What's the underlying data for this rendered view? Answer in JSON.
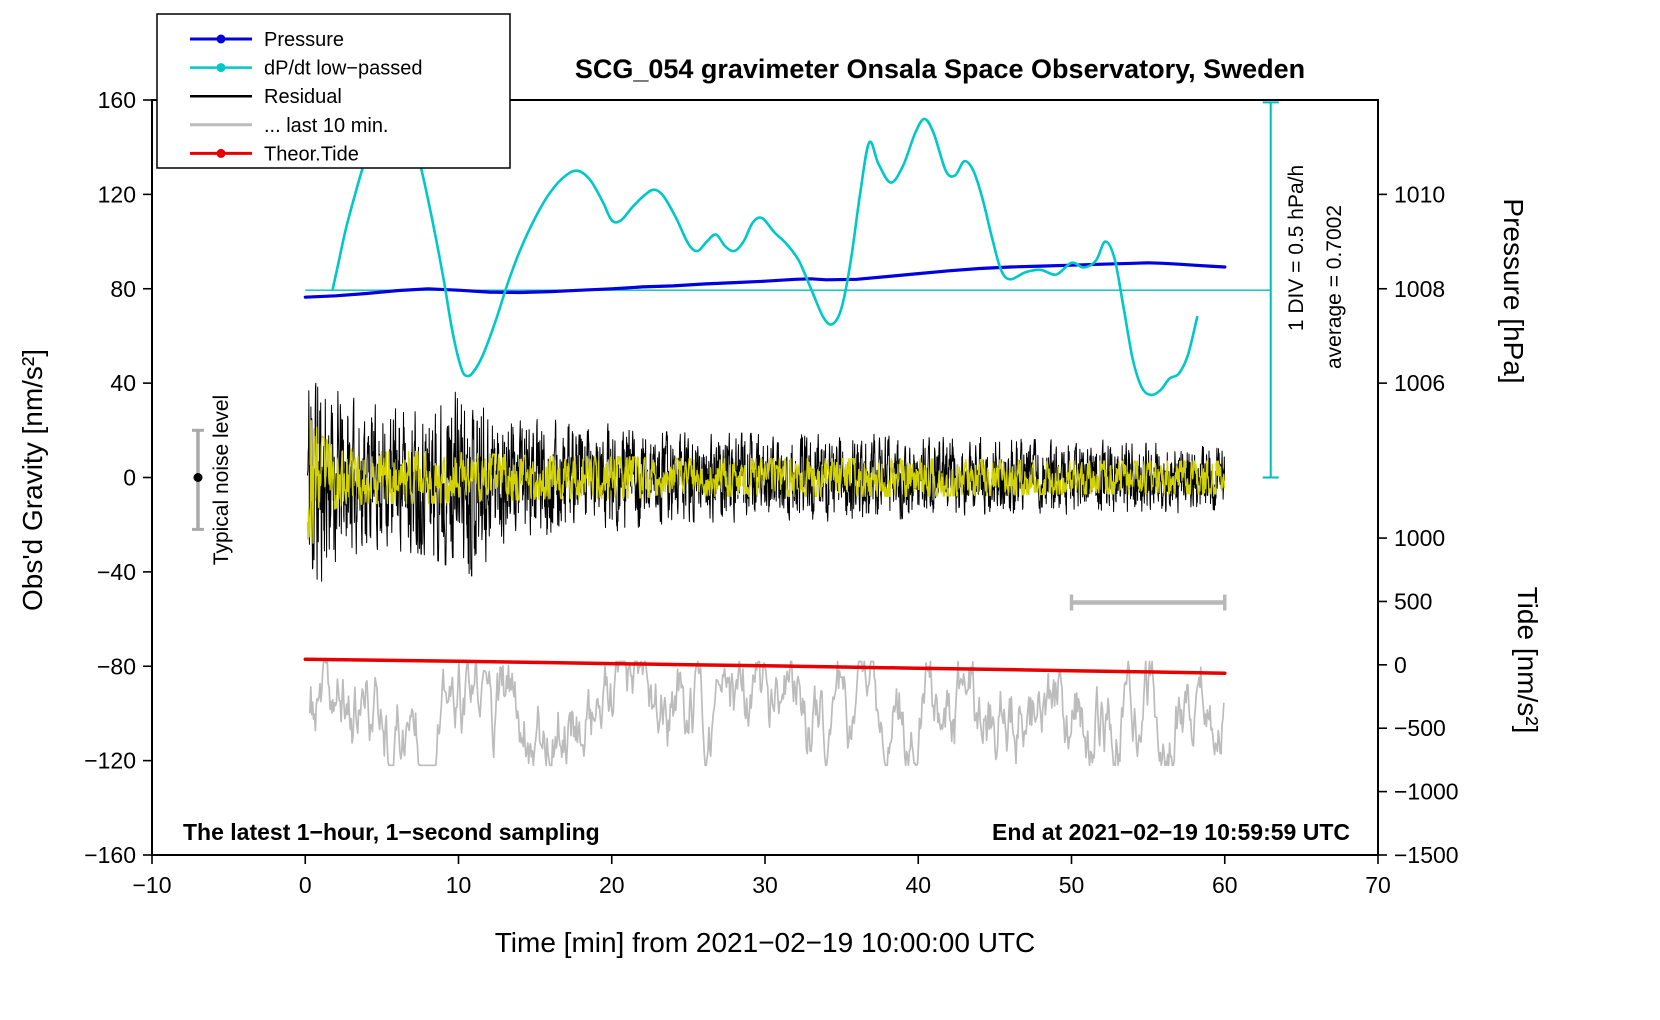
{
  "chart_data": {
    "type": "line",
    "title": "SCG_054 gravimeter Onsala Space Observatory, Sweden",
    "xlabel": "Time [min] from 2021−02−19 10:00:00 UTC",
    "ylabel_left": "Obs'd Gravity [nm/s²]",
    "ylabel_right_top": "Pressure [hPa]",
    "ylabel_right_bottom": "Tide [nm/s²]",
    "footnote_left": "The latest 1−hour, 1−second sampling",
    "footnote_right": "End at 2021−02−19 10:59:59 UTC",
    "x_axis": {
      "min": -10,
      "max": 70,
      "ticks": [
        -10,
        0,
        10,
        20,
        30,
        40,
        50,
        60,
        70
      ],
      "tick_labels": [
        "−10",
        "0",
        "10",
        "20",
        "30",
        "40",
        "50",
        "60",
        "70"
      ]
    },
    "gravity_axis": {
      "min": -160,
      "max": 160,
      "ticks": [
        160,
        120,
        80,
        40,
        0,
        -40,
        -80,
        -120,
        -160
      ],
      "tick_labels": [
        "160",
        "120",
        "80",
        "40",
        "0",
        "−40",
        "−80",
        "−120",
        "−160"
      ]
    },
    "pressure_axis": {
      "ticks": [
        1010,
        1008,
        1006
      ],
      "tick_labels": [
        "1010",
        "1008",
        "1006"
      ],
      "ref_hPa": 1008,
      "ref_gravity": 80,
      "gravity_per_hPa": 20
    },
    "tide_axis": {
      "ticks": [
        1000,
        500,
        0,
        -500,
        -1000,
        -1500
      ],
      "tick_labels": [
        "1000",
        "500",
        "0",
        "−500",
        "−1000",
        "−1500"
      ],
      "ref_tide": 0,
      "ref_gravity": -79.4,
      "gravity_per_unit": 0.053733
    },
    "legend": {
      "items": [
        {
          "label": "Pressure",
          "color": "#0000e0",
          "dot": true,
          "width": 3
        },
        {
          "label": "dP/dt low−passed",
          "color": "#00c8c8",
          "dot": true,
          "width": 2.5
        },
        {
          "label": "Residual",
          "color": "#000000",
          "dot": false,
          "width": 2.5
        },
        {
          "label": "... last 10 min.",
          "color": "#bcbcbc",
          "dot": false,
          "width": 3
        },
        {
          "label": "Theor.Tide",
          "color": "#e80000",
          "dot": true,
          "width": 3
        }
      ]
    },
    "average_line": {
      "gravity": 79.4,
      "x_start": 0,
      "x_end": 63,
      "color": "#00bdbd"
    },
    "div_scale_bar": {
      "x": 63,
      "gravity_min": 0,
      "gravity_max": 159,
      "color": "#00bdbd",
      "label_div": "1 DIV = 0.5 hPa/h",
      "label_avg": "average = 0.7002"
    },
    "noise_level_marker": {
      "x": -7,
      "gravity_min": -22,
      "gravity_max": 20,
      "dot_gravity": 0,
      "color": "#a9a9a9",
      "label": "Typical noise level"
    },
    "gray_scale_bar": {
      "x_start": 50,
      "x_end": 60,
      "gravity": -53,
      "color": "#b8b8b8"
    },
    "series": {
      "pressure": {
        "name": "Pressure",
        "color": "#0000e0",
        "width": 3.2,
        "axis": "pressure",
        "points": [
          [
            0,
            1007.82
          ],
          [
            2,
            1007.85
          ],
          [
            4,
            1007.9
          ],
          [
            6,
            1007.96
          ],
          [
            8,
            1008.0
          ],
          [
            10,
            1007.97
          ],
          [
            12,
            1007.93
          ],
          [
            14,
            1007.92
          ],
          [
            16,
            1007.94
          ],
          [
            18,
            1007.97
          ],
          [
            20,
            1008.0
          ],
          [
            22,
            1008.04
          ],
          [
            24,
            1008.06
          ],
          [
            26,
            1008.1
          ],
          [
            28,
            1008.13
          ],
          [
            30,
            1008.16
          ],
          [
            32,
            1008.2
          ],
          [
            33,
            1008.21
          ],
          [
            34,
            1008.19
          ],
          [
            36,
            1008.2
          ],
          [
            38,
            1008.26
          ],
          [
            40,
            1008.32
          ],
          [
            42,
            1008.38
          ],
          [
            44,
            1008.43
          ],
          [
            46,
            1008.46
          ],
          [
            48,
            1008.48
          ],
          [
            50,
            1008.5
          ],
          [
            52,
            1008.52
          ],
          [
            54,
            1008.54
          ],
          [
            55,
            1008.55
          ],
          [
            56,
            1008.54
          ],
          [
            57,
            1008.52
          ],
          [
            58,
            1008.5
          ],
          [
            59,
            1008.48
          ],
          [
            60,
            1008.46
          ]
        ]
      },
      "dpdt": {
        "name": "dP/dt low−passed",
        "color": "#00c8c8",
        "width": 2.6,
        "axis": "gravity",
        "smooth": true,
        "points": [
          [
            1.8,
            80
          ],
          [
            2.2,
            92
          ],
          [
            2.6,
            104
          ],
          [
            3,
            114
          ],
          [
            3.6,
            128
          ],
          [
            4.2,
            140
          ],
          [
            5,
            150
          ],
          [
            6,
            152
          ],
          [
            6.6,
            148
          ],
          [
            7.4,
            135
          ],
          [
            8.2,
            112
          ],
          [
            9,
            85
          ],
          [
            9.6,
            62
          ],
          [
            10.2,
            46
          ],
          [
            10.6,
            43
          ],
          [
            11,
            45
          ],
          [
            11.6,
            52
          ],
          [
            12.4,
            66
          ],
          [
            13.2,
            82
          ],
          [
            14,
            96
          ],
          [
            15,
            110
          ],
          [
            16,
            121
          ],
          [
            17,
            128
          ],
          [
            17.8,
            130
          ],
          [
            18.6,
            126
          ],
          [
            19.4,
            117
          ],
          [
            20,
            109
          ],
          [
            20.6,
            109
          ],
          [
            21.4,
            115
          ],
          [
            22.2,
            120
          ],
          [
            22.8,
            122
          ],
          [
            23.4,
            119
          ],
          [
            24.2,
            110
          ],
          [
            25,
            99
          ],
          [
            25.6,
            96
          ],
          [
            26.2,
            100
          ],
          [
            26.8,
            103
          ],
          [
            27.4,
            98
          ],
          [
            28,
            96
          ],
          [
            28.6,
            100
          ],
          [
            29.2,
            108
          ],
          [
            29.8,
            110
          ],
          [
            30.6,
            104
          ],
          [
            31.4,
            99
          ],
          [
            32.2,
            92
          ],
          [
            33,
            80
          ],
          [
            33.8,
            68
          ],
          [
            34.4,
            65
          ],
          [
            35,
            72
          ],
          [
            35.6,
            92
          ],
          [
            36.2,
            120
          ],
          [
            36.8,
            142
          ],
          [
            37.4,
            133
          ],
          [
            38.2,
            125
          ],
          [
            39,
            132
          ],
          [
            39.8,
            146
          ],
          [
            40.4,
            152
          ],
          [
            41,
            146
          ],
          [
            41.8,
            130
          ],
          [
            42.4,
            128
          ],
          [
            43,
            134
          ],
          [
            43.6,
            130
          ],
          [
            44.2,
            118
          ],
          [
            44.8,
            102
          ],
          [
            45.4,
            88
          ],
          [
            46,
            84
          ],
          [
            47,
            87
          ],
          [
            48,
            88
          ],
          [
            49,
            86
          ],
          [
            50,
            91
          ],
          [
            50.8,
            89
          ],
          [
            51.6,
            92
          ],
          [
            52.2,
            100
          ],
          [
            52.8,
            93
          ],
          [
            53.4,
            72
          ],
          [
            54,
            50
          ],
          [
            54.6,
            38
          ],
          [
            55.2,
            35
          ],
          [
            55.8,
            37
          ],
          [
            56.4,
            42
          ],
          [
            57,
            44
          ],
          [
            57.6,
            52
          ],
          [
            58.2,
            68
          ]
        ]
      },
      "tide": {
        "name": "Theor.Tide",
        "color": "#e80000",
        "width": 3.5,
        "axis": "tide",
        "points": [
          [
            0,
            44
          ],
          [
            5,
            36
          ],
          [
            10,
            28
          ],
          [
            15,
            19
          ],
          [
            20,
            10
          ],
          [
            25,
            1
          ],
          [
            30,
            -8
          ],
          [
            35,
            -17
          ],
          [
            40,
            -27
          ],
          [
            45,
            -36
          ],
          [
            50,
            -46
          ],
          [
            55,
            -56
          ],
          [
            60,
            -66
          ]
        ]
      },
      "residual": {
        "name": "Residual",
        "color": "#000000",
        "width": 1,
        "axis": "gravity",
        "noise": {
          "seed": 11,
          "dt": 0.02,
          "x_start": 0.15,
          "x_end": 60,
          "ar": 0.45,
          "scale": 0.75,
          "center": 0,
          "envelope": [
            [
              0.15,
              58
            ],
            [
              0.5,
              62
            ],
            [
              1,
              48
            ],
            [
              2,
              38
            ],
            [
              3,
              34
            ],
            [
              5,
              30
            ],
            [
              8,
              33
            ],
            [
              10,
              40
            ],
            [
              11,
              42
            ],
            [
              12.5,
              30
            ],
            [
              14,
              24
            ],
            [
              16,
              25
            ],
            [
              18,
              21
            ],
            [
              20,
              23
            ],
            [
              24,
              19
            ],
            [
              28,
              19
            ],
            [
              32,
              18
            ],
            [
              36,
              19
            ],
            [
              40,
              17
            ],
            [
              44,
              17
            ],
            [
              48,
              16
            ],
            [
              52,
              16
            ],
            [
              56,
              15
            ],
            [
              60,
              15
            ]
          ]
        }
      },
      "residual_lowpassed_overlay": {
        "name": "Residual low-passed overlay",
        "color": "#d2d200",
        "width": 1.3,
        "axis": "gravity",
        "noise": {
          "seed": 23,
          "dt": 0.03,
          "x_start": 0.15,
          "x_end": 60,
          "ar": 0.6,
          "scale": 0.9,
          "center": 0,
          "envelope": [
            [
              0.15,
              26
            ],
            [
              0.5,
              28
            ],
            [
              1,
              18
            ],
            [
              2,
              13
            ],
            [
              4,
              11
            ],
            [
              8,
              11
            ],
            [
              12,
              10
            ],
            [
              16,
              9
            ],
            [
              20,
              9
            ],
            [
              25,
              8
            ],
            [
              30,
              8
            ],
            [
              40,
              8
            ],
            [
              50,
              7
            ],
            [
              60,
              7
            ]
          ]
        }
      },
      "last10": {
        "name": "... last 10 min.",
        "color": "#bcbcbc",
        "width": 1.7,
        "axis": "gravity",
        "noise": {
          "seed": 37,
          "dt": 0.06,
          "x_start": 0.3,
          "x_end": 60,
          "ar": 0.88,
          "scale": 0.5,
          "center": -100,
          "envelope": [
            [
              0.3,
              22
            ],
            [
              60,
              22
            ]
          ]
        }
      }
    }
  }
}
